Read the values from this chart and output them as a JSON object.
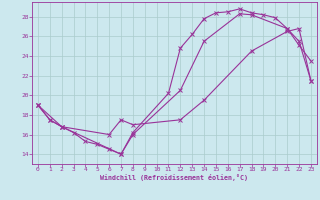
{
  "bg_color": "#cce8ee",
  "grid_color": "#aacccc",
  "line_color": "#993399",
  "xlabel": "Windchill (Refroidissement éolien,°C)",
  "xlim": [
    -0.5,
    23.5
  ],
  "ylim": [
    13.0,
    29.5
  ],
  "yticks": [
    14,
    16,
    18,
    20,
    22,
    24,
    26,
    28
  ],
  "xticks": [
    0,
    1,
    2,
    3,
    4,
    5,
    6,
    7,
    8,
    9,
    10,
    11,
    12,
    13,
    14,
    15,
    16,
    17,
    18,
    19,
    20,
    21,
    22,
    23
  ],
  "line1_x": [
    0,
    1,
    2,
    3,
    4,
    5,
    6,
    7,
    8,
    11,
    12,
    13,
    14,
    15,
    16,
    17,
    18,
    19,
    20,
    21,
    22,
    23
  ],
  "line1_y": [
    19.0,
    17.5,
    16.8,
    16.2,
    15.3,
    15.0,
    14.5,
    14.0,
    16.2,
    20.2,
    24.8,
    26.2,
    27.8,
    28.4,
    28.5,
    28.8,
    28.4,
    28.2,
    27.9,
    26.8,
    25.1,
    23.5
  ],
  "line2_x": [
    0,
    1,
    2,
    7,
    8,
    12,
    14,
    17,
    18,
    21,
    22,
    23
  ],
  "line2_y": [
    19.0,
    17.5,
    16.8,
    14.0,
    16.0,
    20.5,
    25.5,
    28.3,
    28.2,
    26.8,
    25.5,
    21.5
  ],
  "line3_x": [
    0,
    2,
    6,
    7,
    8,
    12,
    14,
    18,
    21,
    22,
    23
  ],
  "line3_y": [
    19.0,
    16.8,
    16.0,
    17.5,
    17.0,
    17.5,
    19.5,
    24.5,
    26.5,
    26.8,
    21.5
  ],
  "marker": "x",
  "markersize": 3,
  "linewidth": 0.8
}
